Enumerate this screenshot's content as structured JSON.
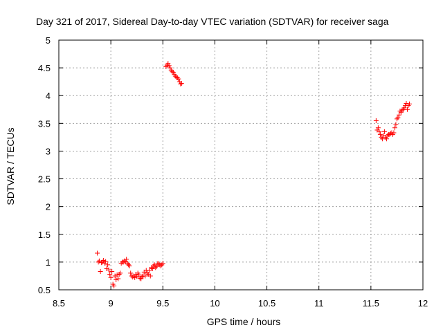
{
  "chart_data": {
    "type": "scatter",
    "title": "Day 321 of 2017, Sidereal Day-to-day VTEC variation (SDTVAR) for receiver saga",
    "xlabel": "GPS time / hours",
    "ylabel": "SDTVAR / TECUs",
    "xlim": [
      8.5,
      12
    ],
    "ylim": [
      0.5,
      5
    ],
    "xticks": [
      "8.5",
      "9",
      "9.5",
      "10",
      "10.5",
      "11",
      "11.5",
      "12"
    ],
    "yticks": [
      "0.5",
      "1",
      "1.5",
      "2",
      "2.5",
      "3",
      "3.5",
      "4",
      "4.5",
      "5"
    ],
    "grid": true,
    "marker": "+",
    "color": "#ff0000",
    "series": [
      {
        "name": "SDTVAR",
        "x": [
          8.87,
          8.88,
          8.89,
          8.9,
          8.91,
          8.92,
          8.93,
          8.94,
          8.95,
          8.96,
          8.97,
          8.98,
          8.99,
          9.0,
          9.01,
          9.02,
          9.03,
          9.04,
          9.05,
          9.06,
          9.07,
          9.08,
          9.09,
          9.1,
          9.11,
          9.12,
          9.13,
          9.14,
          9.15,
          9.16,
          9.17,
          9.18,
          9.19,
          9.2,
          9.21,
          9.22,
          9.23,
          9.24,
          9.25,
          9.26,
          9.27,
          9.28,
          9.29,
          9.3,
          9.31,
          9.32,
          9.33,
          9.34,
          9.35,
          9.36,
          9.37,
          9.38,
          9.39,
          9.4,
          9.41,
          9.42,
          9.43,
          9.44,
          9.45,
          9.46,
          9.47,
          9.48,
          9.49,
          9.5,
          9.53,
          9.54,
          9.55,
          9.56,
          9.57,
          9.58,
          9.59,
          9.6,
          9.61,
          9.62,
          9.63,
          9.64,
          9.65,
          9.66,
          9.67,
          9.68,
          11.55,
          11.56,
          11.57,
          11.58,
          11.59,
          11.6,
          11.61,
          11.62,
          11.63,
          11.64,
          11.65,
          11.66,
          11.67,
          11.68,
          11.69,
          11.7,
          11.71,
          11.72,
          11.73,
          11.74,
          11.75,
          11.76,
          11.77,
          11.78,
          11.79,
          11.8,
          11.81,
          11.82,
          11.83,
          11.84,
          11.85,
          11.86,
          11.87
        ],
        "y": [
          1.16,
          1.0,
          1.02,
          0.83,
          0.99,
          1.0,
          1.03,
          0.98,
          1.01,
          0.88,
          0.95,
          0.86,
          0.78,
          0.72,
          0.83,
          0.6,
          0.57,
          0.75,
          0.68,
          0.77,
          0.7,
          0.78,
          0.8,
          0.98,
          1.0,
          1.0,
          1.02,
          1.0,
          1.05,
          0.98,
          0.95,
          0.93,
          0.8,
          0.75,
          0.73,
          0.75,
          0.72,
          0.78,
          0.74,
          0.8,
          0.77,
          0.71,
          0.7,
          0.74,
          0.75,
          0.82,
          0.75,
          0.85,
          0.8,
          0.78,
          0.85,
          0.75,
          0.9,
          0.88,
          0.93,
          0.95,
          0.9,
          0.92,
          0.97,
          0.97,
          0.95,
          0.93,
          0.95,
          0.98,
          4.52,
          4.55,
          4.58,
          4.54,
          4.5,
          4.46,
          4.43,
          4.42,
          4.38,
          4.35,
          4.33,
          4.32,
          4.3,
          4.25,
          4.21,
          4.22,
          3.55,
          3.38,
          3.42,
          3.35,
          3.3,
          3.25,
          3.22,
          3.28,
          3.35,
          3.25,
          3.22,
          3.28,
          3.3,
          3.3,
          3.32,
          3.33,
          3.3,
          3.33,
          3.42,
          3.48,
          3.58,
          3.6,
          3.65,
          3.72,
          3.7,
          3.74,
          3.75,
          3.78,
          3.82,
          3.86,
          3.75,
          3.82,
          3.85
        ]
      }
    ]
  }
}
